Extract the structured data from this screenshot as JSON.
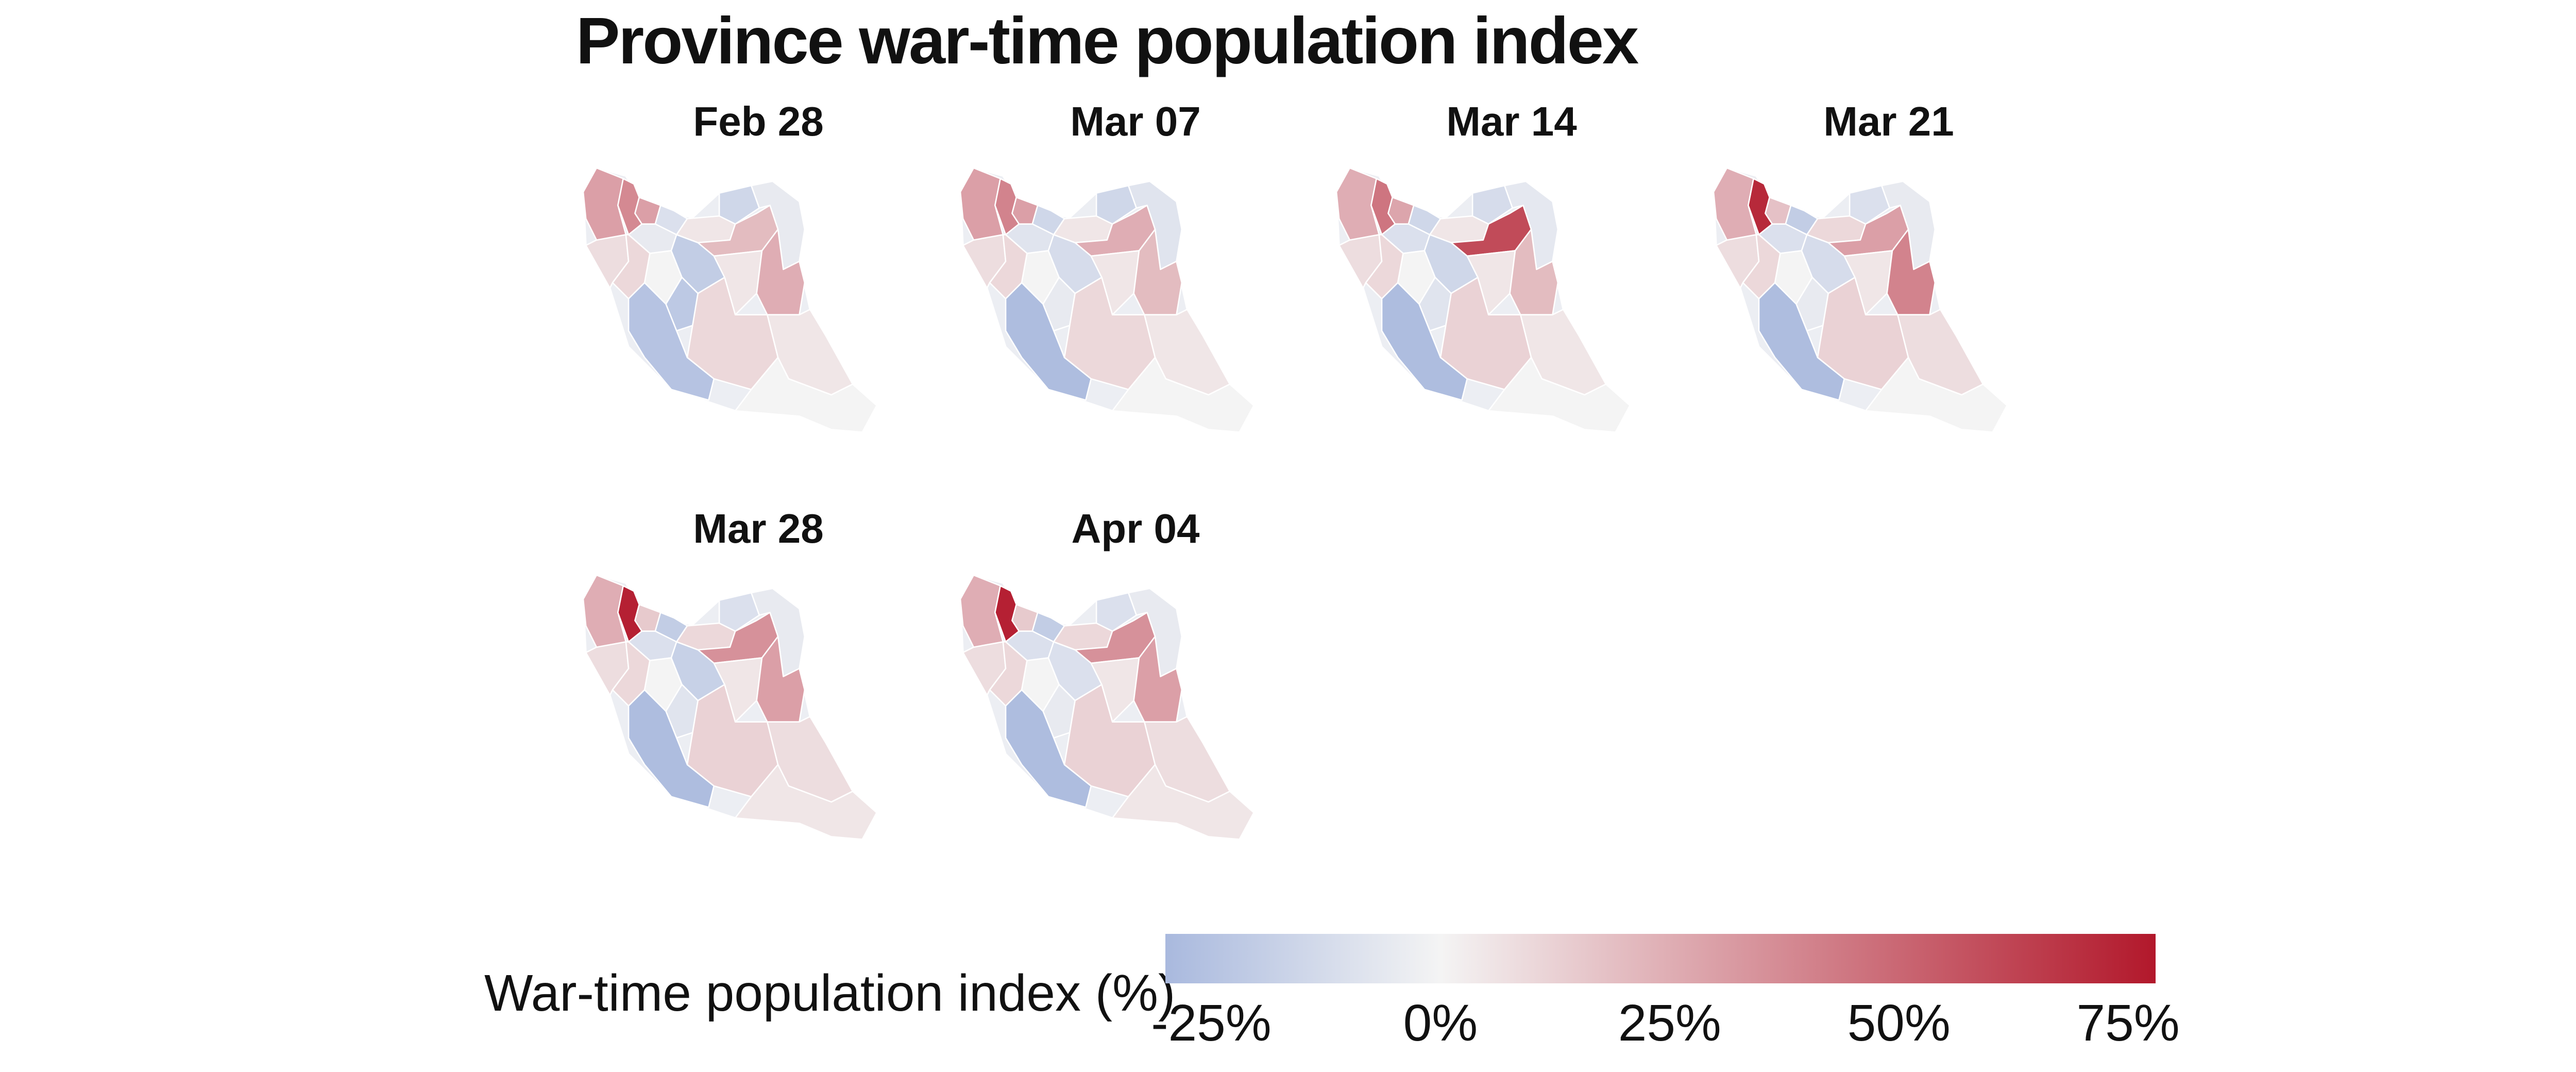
{
  "title": "Province war-time population index",
  "panels": [
    {
      "label": "Feb 28",
      "regions": {
        "nw1": 30,
        "nw2": 38,
        "nw3": 30,
        "n1": -10,
        "n2": -5,
        "n3": 5,
        "n4": 20,
        "ne1": -15,
        "ne2": -5,
        "w1": 8,
        "w2": 10,
        "w3": 0,
        "c1": -20,
        "c2": -22,
        "e1": 5,
        "e2": 25,
        "sw1": -25,
        "s1": 10,
        "se1": 5,
        "s2": 0
      }
    },
    {
      "label": "Mar 07",
      "regions": {
        "nw1": 30,
        "nw2": 40,
        "nw3": 30,
        "n1": -15,
        "n2": -8,
        "n3": 5,
        "n4": 25,
        "ne1": -15,
        "ne2": -8,
        "w1": 8,
        "w2": 10,
        "w3": 0,
        "c1": -12,
        "c2": -5,
        "e1": 5,
        "e2": 20,
        "sw1": -28,
        "s1": 10,
        "se1": 5,
        "s2": 0
      }
    },
    {
      "label": "Mar 14",
      "regions": {
        "nw1": 25,
        "nw2": 45,
        "nw3": 28,
        "n1": -15,
        "n2": -10,
        "n3": 5,
        "n4": 60,
        "ne1": -12,
        "ne2": -6,
        "w1": 8,
        "w2": 10,
        "w3": 0,
        "c1": -15,
        "c2": -8,
        "e1": 5,
        "e2": 20,
        "sw1": -28,
        "s1": 12,
        "se1": 5,
        "s2": 0
      }
    },
    {
      "label": "Mar 21",
      "regions": {
        "nw1": 25,
        "nw2": 72,
        "nw3": 18,
        "n1": -20,
        "n2": -10,
        "n3": 10,
        "n4": 30,
        "ne1": -10,
        "ne2": -5,
        "w1": 8,
        "w2": 10,
        "w3": 0,
        "c1": -12,
        "c2": -5,
        "e1": 5,
        "e2": 40,
        "sw1": -28,
        "s1": 12,
        "se1": 8,
        "s2": 0
      }
    },
    {
      "label": "Mar 28",
      "regions": {
        "nw1": 25,
        "nw2": 75,
        "nw3": 15,
        "n1": -20,
        "n2": -10,
        "n3": 10,
        "n4": 35,
        "ne1": -10,
        "ne2": -5,
        "w1": 8,
        "w2": 10,
        "w3": 0,
        "c1": -18,
        "c2": -8,
        "e1": 5,
        "e2": 30,
        "sw1": -28,
        "s1": 12,
        "se1": 8,
        "s2": 5
      }
    },
    {
      "label": "Apr 04",
      "regions": {
        "nw1": 25,
        "nw2": 75,
        "nw3": 15,
        "n1": -20,
        "n2": -10,
        "n3": 10,
        "n4": 35,
        "ne1": -10,
        "ne2": -5,
        "w1": 8,
        "w2": 10,
        "w3": 0,
        "c1": -10,
        "c2": -5,
        "e1": 5,
        "e2": 30,
        "sw1": -28,
        "s1": 12,
        "se1": 8,
        "s2": 5
      }
    }
  ],
  "legend": {
    "title": "War-time population index (%)",
    "ticks": [
      {
        "label": "-25%",
        "value": -25
      },
      {
        "label": "0%",
        "value": 0
      },
      {
        "label": "25%",
        "value": 25
      },
      {
        "label": "50%",
        "value": 50
      },
      {
        "label": "75%",
        "value": 75
      }
    ],
    "min": -30,
    "max": 78,
    "colors": {
      "low": "#a9b9de",
      "mid": "#f4f4f4",
      "high": "#b2182b"
    }
  }
}
